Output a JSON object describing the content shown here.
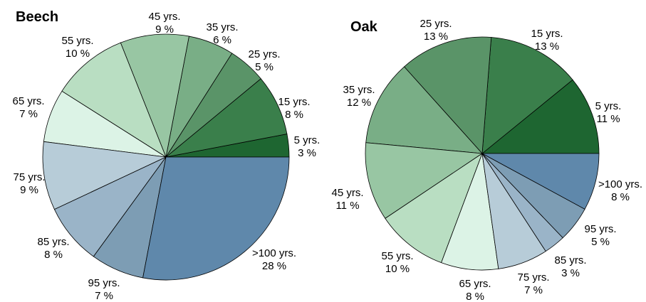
{
  "chart_data": [
    {
      "type": "pie",
      "title": "Beech",
      "slices": [
        {
          "label": "5 yrs.",
          "pct_label": "3 %",
          "value": 3,
          "color": "#1e6631"
        },
        {
          "label": "15 yrs.",
          "pct_label": "8 %",
          "value": 8,
          "color": "#3a7f4b"
        },
        {
          "label": "25 yrs.",
          "pct_label": "5 %",
          "value": 5,
          "color": "#5a9468"
        },
        {
          "label": "35 yrs.",
          "pct_label": "6 %",
          "value": 6,
          "color": "#79ae86"
        },
        {
          "label": "45 yrs.",
          "pct_label": "9 %",
          "value": 9,
          "color": "#98c6a3"
        },
        {
          "label": "55 yrs.",
          "pct_label": "10 %",
          "value": 10,
          "color": "#b9dec2"
        },
        {
          "label": "65 yrs.",
          "pct_label": "7 %",
          "value": 7,
          "color": "#dcf3e6"
        },
        {
          "label": "75 yrs.",
          "pct_label": "9 %",
          "value": 9,
          "color": "#b7ccd8"
        },
        {
          "label": "85 yrs.",
          "pct_label": "8 %",
          "value": 8,
          "color": "#9ab4c8"
        },
        {
          "label": "95 yrs.",
          "pct_label": "7 %",
          "value": 7,
          "color": "#7d9db4"
        },
        {
          "label": ">100 yrs.",
          "pct_label": "28 %",
          "value": 28,
          "color": "#5f88ab"
        }
      ]
    },
    {
      "type": "pie",
      "title": "Oak",
      "slices": [
        {
          "label": "5 yrs.",
          "pct_label": "11 %",
          "value": 11,
          "color": "#1e6631"
        },
        {
          "label": "15 yrs.",
          "pct_label": "13 %",
          "value": 13,
          "color": "#3a7f4b"
        },
        {
          "label": "25 yrs.",
          "pct_label": "13 %",
          "value": 13,
          "color": "#5a9468"
        },
        {
          "label": "35 yrs.",
          "pct_label": "12 %",
          "value": 12,
          "color": "#79ae86"
        },
        {
          "label": "45 yrs.",
          "pct_label": "11 %",
          "value": 11,
          "color": "#98c6a3"
        },
        {
          "label": "55 yrs.",
          "pct_label": "10 %",
          "value": 10,
          "color": "#b9dec2"
        },
        {
          "label": "65 yrs.",
          "pct_label": "8 %",
          "value": 8,
          "color": "#dcf3e6"
        },
        {
          "label": "75 yrs.",
          "pct_label": "7 %",
          "value": 7,
          "color": "#b7ccd8"
        },
        {
          "label": "85 yrs.",
          "pct_label": "3 %",
          "value": 3,
          "color": "#9ab4c8"
        },
        {
          "label": "95 yrs.",
          "pct_label": "5 %",
          "value": 5,
          "color": "#7d9db4"
        },
        {
          "label": ">100 yrs.",
          "pct_label": "8 %",
          "value": 8,
          "color": "#5f88ab"
        }
      ]
    }
  ]
}
